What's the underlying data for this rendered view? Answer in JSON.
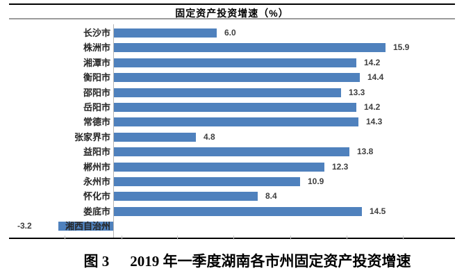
{
  "chart_data": {
    "type": "bar",
    "orientation": "horizontal",
    "title": "固定资产投资增速（%）",
    "categories": [
      "长沙市",
      "株洲市",
      "湘潭市",
      "衡阳市",
      "邵阳市",
      "岳阳市",
      "常德市",
      "张家界市",
      "益阳市",
      "郴州市",
      "永州市",
      "怀化市",
      "娄底市",
      "湘西自治州"
    ],
    "values": [
      6.0,
      15.9,
      14.2,
      14.4,
      13.3,
      14.2,
      14.3,
      4.8,
      13.8,
      12.3,
      10.9,
      8.4,
      14.5,
      -3.2
    ],
    "value_labels": [
      "6.0",
      "15.9",
      "14.2",
      "14.4",
      "13.3",
      "14.2",
      "14.3",
      "4.8",
      "13.8",
      "12.3",
      "10.9",
      "8.4",
      "14.5",
      "-3.2"
    ],
    "xlim": [
      -4,
      20
    ],
    "grid": false,
    "legend": "none",
    "bar_color": "#4f81bd"
  },
  "caption": {
    "figure_no": "图 3",
    "text": "2019 年一季度湖南各市州固定资产投资增速"
  },
  "colors": {
    "bar": "#4f81bd",
    "axis_line": "#b5b5b5",
    "border_black": "#000000",
    "divider_gray": "#9b9b9b",
    "category_text": "#262626",
    "value_text": "#3f3f3f"
  }
}
